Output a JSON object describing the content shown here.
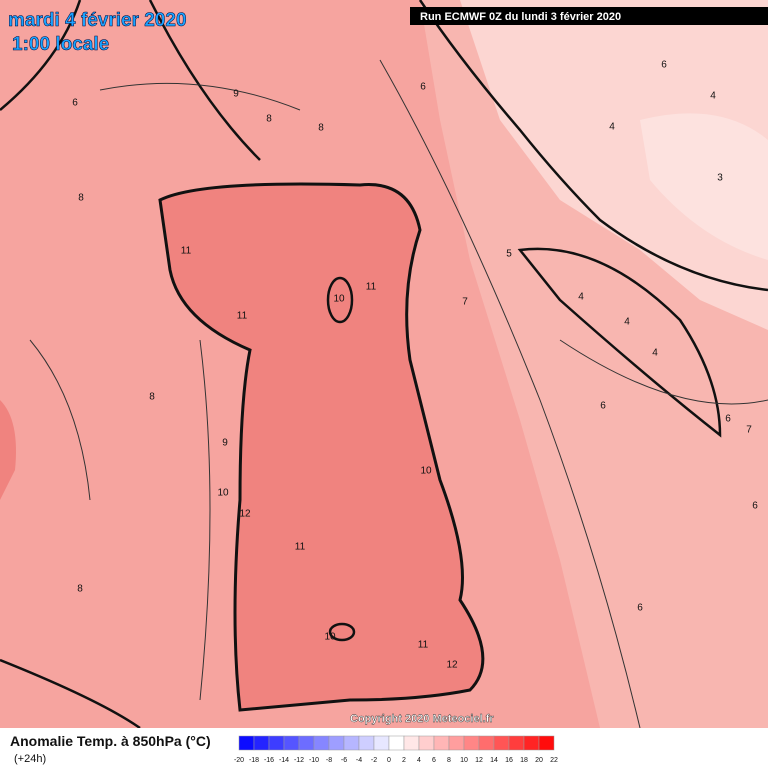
{
  "header": {
    "date": "mardi 4 février 2020",
    "time": "1:00 locale",
    "run": "Run ECMWF 0Z du lundi 3 février 2020"
  },
  "map": {
    "contour_labels": [
      6,
      9,
      8,
      8,
      6,
      6,
      4,
      4,
      3,
      8,
      11,
      10,
      11,
      11,
      5,
      4,
      4,
      4,
      7,
      8,
      9,
      6,
      6,
      7,
      10,
      12,
      10,
      11,
      6,
      8,
      6,
      10,
      11,
      12
    ],
    "copyright": "Copyright 2020 Meteociel.fr"
  },
  "footer": {
    "legend_title": "Anomalie Temp. à 850hPa (°C)",
    "lead": "(+24h)",
    "scale": [
      -20,
      -18,
      -16,
      -14,
      -12,
      -10,
      -8,
      -6,
      -4,
      -2,
      0,
      2,
      4,
      6,
      8,
      10,
      12,
      14,
      16,
      18,
      20,
      22
    ]
  }
}
